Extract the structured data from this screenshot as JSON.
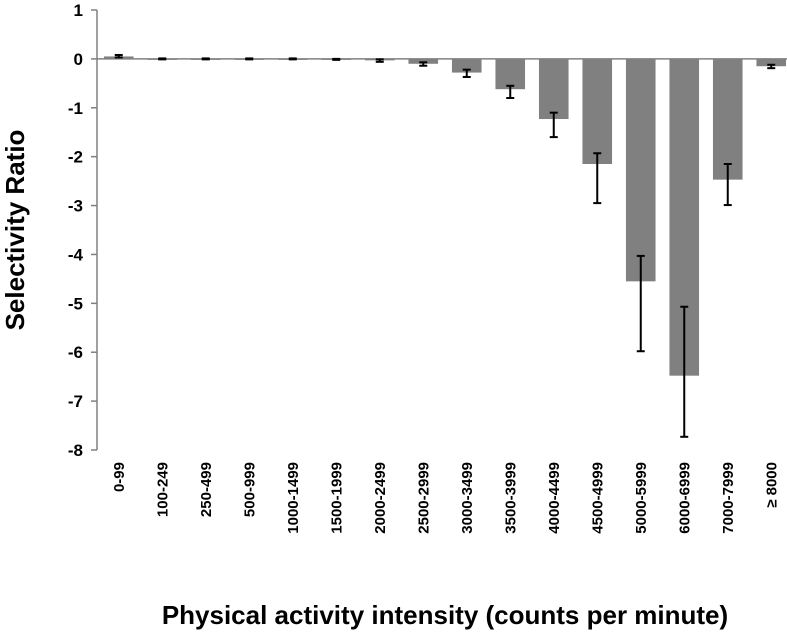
{
  "chart_data": {
    "type": "bar",
    "xlabel": "Physical activity intensity (counts per minute)",
    "ylabel": "Selectivity Ratio",
    "ylim": [
      -8,
      1
    ],
    "yticks": [
      1,
      0,
      -1,
      -2,
      -3,
      -4,
      -5,
      -6,
      -7,
      -8
    ],
    "grid": false,
    "legend": "none",
    "bar_color": "#808080",
    "categories": [
      "0-99",
      "100-249",
      "250-499",
      "500-999",
      "1000-1499",
      "1500-1999",
      "2000-2499",
      "2500-2999",
      "3000-3499",
      "3500-3999",
      "4000-4499",
      "4500-4999",
      "5000-5999",
      "6000-6999",
      "7000-7999",
      "≥ 8000"
    ],
    "values": [
      0.05,
      0.0,
      0.0,
      0.0,
      0.0,
      -0.01,
      -0.03,
      -0.1,
      -0.28,
      -0.62,
      -1.23,
      -2.15,
      -4.55,
      -6.48,
      -2.47,
      -0.15
    ],
    "error_bars": [
      {
        "low": 0.03,
        "high": 0.08
      },
      {
        "low": -0.01,
        "high": 0.01
      },
      {
        "low": -0.01,
        "high": 0.01
      },
      {
        "low": -0.01,
        "high": 0.01
      },
      {
        "low": -0.01,
        "high": 0.01
      },
      {
        "low": -0.02,
        "high": 0.0
      },
      {
        "low": -0.06,
        "high": -0.01
      },
      {
        "low": -0.14,
        "high": -0.07
      },
      {
        "low": -0.37,
        "high": -0.22
      },
      {
        "low": -0.8,
        "high": -0.55
      },
      {
        "low": -1.6,
        "high": -1.1
      },
      {
        "low": -2.95,
        "high": -1.93
      },
      {
        "low": -5.98,
        "high": -4.03
      },
      {
        "low": -7.73,
        "high": -5.07
      },
      {
        "low": -2.99,
        "high": -2.15
      },
      {
        "low": -0.19,
        "high": -0.12
      }
    ]
  }
}
